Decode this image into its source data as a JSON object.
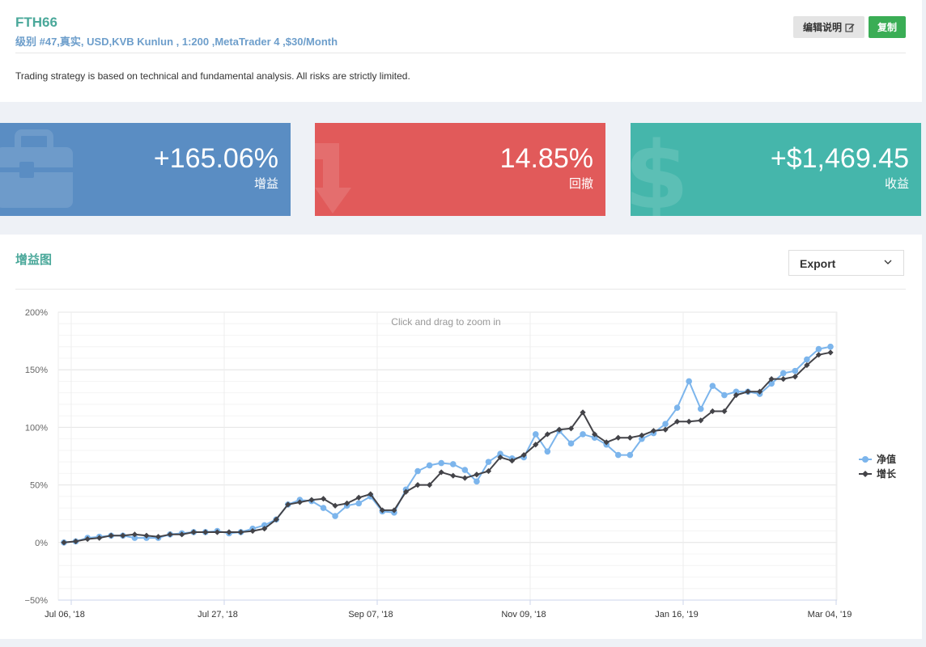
{
  "header": {
    "title": "FTH66",
    "subtitle": "级别 #47,真实, USD,KVB Kunlun , 1:200 ,MetaTrader 4 ,$30/Month",
    "edit_label": "编辑说明",
    "copy_label": "复制",
    "description": "Trading strategy is based on technical and fundamental analysis. All risks are strictly limited."
  },
  "stats": [
    {
      "value": "+165.06%",
      "label": "增益",
      "color": "#5a8dc3",
      "icon": "briefcase-icon"
    },
    {
      "value": "14.85%",
      "label": "回撤",
      "color": "#e15a5a",
      "icon": "arrow-down-icon"
    },
    {
      "value": "+$1,469.45",
      "label": "收益",
      "color": "#45b6ab",
      "icon": "dollar-icon"
    }
  ],
  "chart_section": {
    "title": "增益图",
    "export_label": "Export",
    "zoom_hint": "Click and drag to zoom in"
  },
  "chart_data": {
    "type": "line",
    "title": "",
    "xlabel": "",
    "ylabel": "",
    "x_ticks": [
      "Jul 06, '18",
      "Jul 27, '18",
      "Sep 07, '18",
      "Nov 09, '18",
      "Jan 16, '19",
      "Mar 04, '19"
    ],
    "y_ticks": [
      "200%",
      "150%",
      "100%",
      "50%",
      "0%",
      "−50%"
    ],
    "ylim": [
      -50,
      200
    ],
    "grid": true,
    "legend_position": "right",
    "series": [
      {
        "name": "净值",
        "color": "#7cb5ec",
        "marker": "circle",
        "values": [
          0,
          1,
          4,
          5,
          6,
          6,
          4,
          4,
          4,
          7,
          8,
          9,
          9,
          10,
          8,
          9,
          12,
          15,
          20,
          33,
          37,
          36,
          30,
          23,
          32,
          34,
          40,
          27,
          26,
          46,
          62,
          67,
          69,
          68,
          63,
          53,
          70,
          77,
          73,
          74,
          94,
          79,
          97,
          86,
          94,
          91,
          85,
          76,
          76,
          90,
          95,
          103,
          117,
          140,
          116,
          136,
          128,
          131,
          131,
          129,
          138,
          147,
          149,
          159,
          168,
          170
        ]
      },
      {
        "name": "增长",
        "color": "#434348",
        "marker": "diamond",
        "values": [
          0,
          1,
          3,
          4,
          6,
          6,
          7,
          6,
          5,
          7,
          7,
          9,
          9,
          9,
          9,
          9,
          10,
          12,
          20,
          33,
          35,
          37,
          38,
          32,
          34,
          39,
          42,
          28,
          28,
          44,
          50,
          50,
          61,
          58,
          56,
          59,
          62,
          74,
          71,
          76,
          85,
          94,
          98,
          99,
          113,
          94,
          87,
          91,
          91,
          93,
          97,
          98,
          105,
          105,
          106,
          114,
          114,
          128,
          131,
          131,
          142,
          142,
          144,
          154,
          163,
          165
        ]
      }
    ]
  }
}
